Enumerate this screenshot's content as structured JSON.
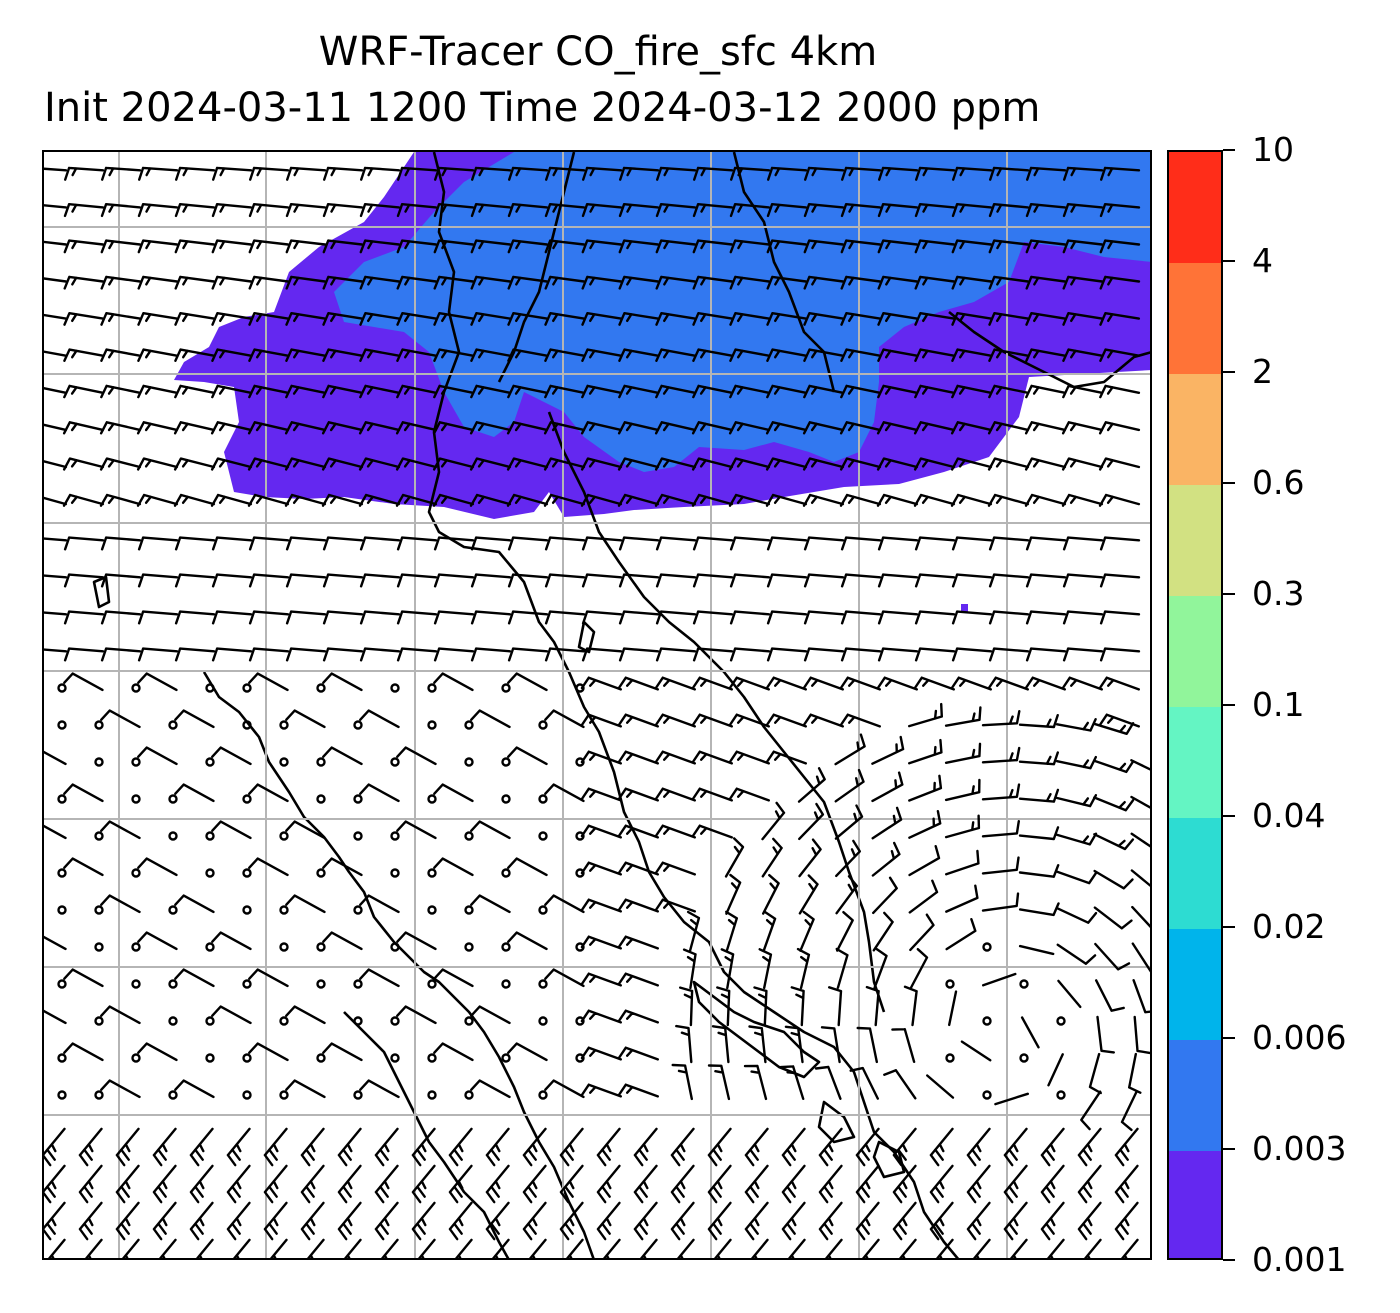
{
  "title": {
    "line1": "WRF-Tracer CO_fire_sfc 4km",
    "line2": "Init 2024-03-11 1200 Time 2024-03-12 2000 ppm"
  },
  "colorbar": {
    "ticks": [
      "0.001",
      "0.003",
      "0.006",
      "0.02",
      "0.04",
      "0.1",
      "0.3",
      "0.6",
      "2",
      "4",
      "10"
    ],
    "colors": [
      "#6428f0",
      "#3278f0",
      "#00b4eb",
      "#2ddcd2",
      "#64f5c3",
      "#91f59b",
      "#d2e182",
      "#fab464",
      "#ff7337",
      "#ff2d19"
    ]
  },
  "map": {
    "fill_level_index": 0,
    "secondary_level_index": 1,
    "gridlines": true,
    "wind_field": "barbs",
    "coastlines": true
  }
}
